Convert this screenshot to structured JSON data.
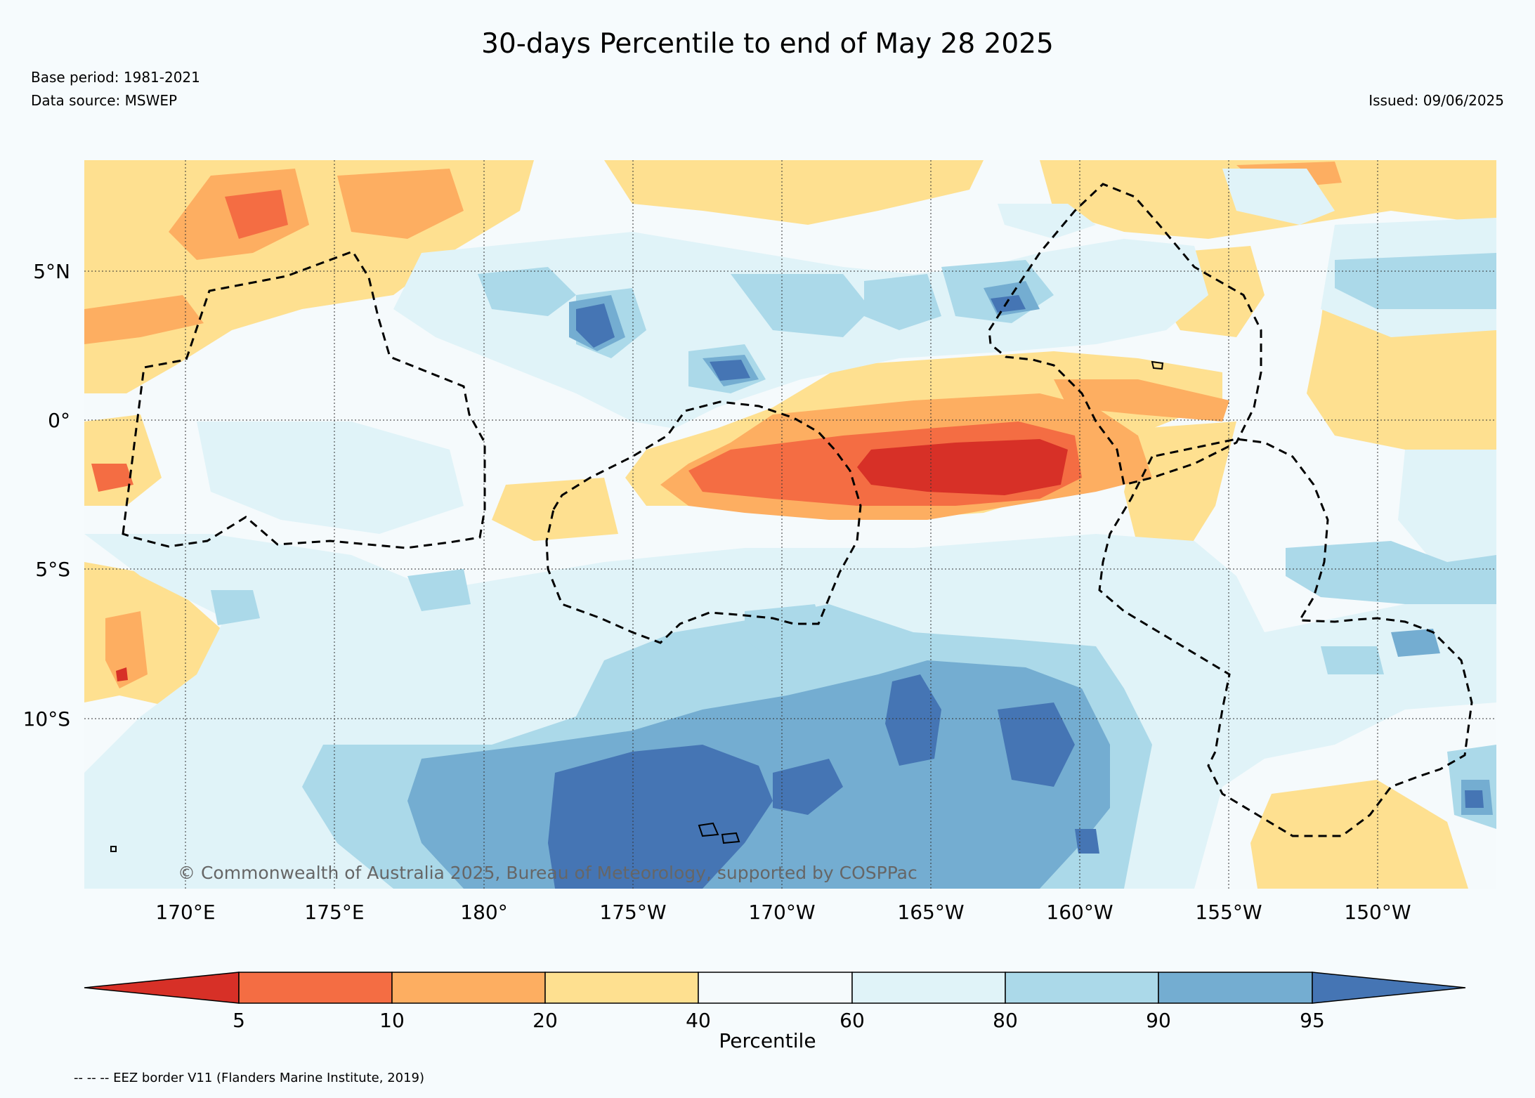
{
  "title": "30-days Percentile to end of May 28 2025",
  "base_period": "Base period: 1981-2021",
  "data_source": "Data source: MSWEP",
  "issued": "Issued: 09/06/2025",
  "credit": "© Commonwealth of Australia 2025, Bureau of Meteorology, supported by COSPPac",
  "footer_note": "-- -- -- EEZ border V11 (Flanders Marine Institute, 2019)",
  "map": {
    "lon_ticks": [
      "170°E",
      "175°E",
      "180°",
      "175°W",
      "170°W",
      "165°W",
      "160°W",
      "155°W",
      "150°W"
    ],
    "lat_ticks": [
      "5°N",
      "0°",
      "5°S",
      "10°S"
    ],
    "background_color": "#f5fafc"
  },
  "colorbar": {
    "label": "Percentile",
    "ticks": [
      "5",
      "10",
      "20",
      "40",
      "60",
      "80",
      "90",
      "95"
    ],
    "colors": [
      "#d73027",
      "#f46d43",
      "#fdae61",
      "#fee090",
      "#f5fafc",
      "#e0f3f8",
      "#abd9e9",
      "#74add1",
      "#4575b4"
    ]
  }
}
